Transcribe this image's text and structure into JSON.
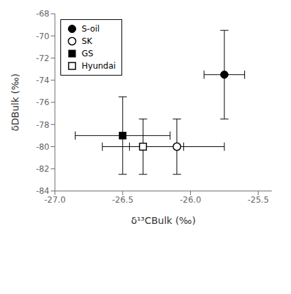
{
  "chart_data": {
    "type": "scatter",
    "xlabel": "δ¹³CBulk (‰)",
    "ylabel": "δDBulk (‰)",
    "xlim": [
      -27.0,
      -25.4
    ],
    "ylim": [
      -84,
      -68
    ],
    "xticks": [
      {
        "value": -27.0,
        "label": "-27.0"
      },
      -26.5,
      {
        "value": -26.0,
        "label": "-26.0"
      },
      -25.5
    ],
    "yticks": [
      -84,
      -82,
      -80,
      -78,
      -76,
      -74,
      -72,
      -70,
      -68
    ],
    "legend": "upper left",
    "grid": false,
    "series": [
      {
        "name": "S-oil",
        "x": [
          -25.75
        ],
        "values": [
          -73.5
        ],
        "xerr": [
          0.15
        ],
        "yerr": [
          4.0
        ],
        "marker": "circle",
        "color": "#000000"
      },
      {
        "name": "SK",
        "x": [
          -26.1
        ],
        "values": [
          -80.0
        ],
        "xerr": [
          0.35
        ],
        "yerr": [
          2.5
        ],
        "marker": "circle-open",
        "color": "#000000"
      },
      {
        "name": "GS",
        "x": [
          -26.5
        ],
        "values": [
          -79.0
        ],
        "xerr": [
          0.35
        ],
        "yerr": [
          3.5
        ],
        "marker": "square",
        "color": "#000000"
      },
      {
        "name": "Hyundai",
        "x": [
          -26.35
        ],
        "values": [
          -80.0
        ],
        "xerr": [
          0.3
        ],
        "yerr": [
          2.5
        ],
        "marker": "square-open",
        "color": "#000000"
      }
    ]
  }
}
